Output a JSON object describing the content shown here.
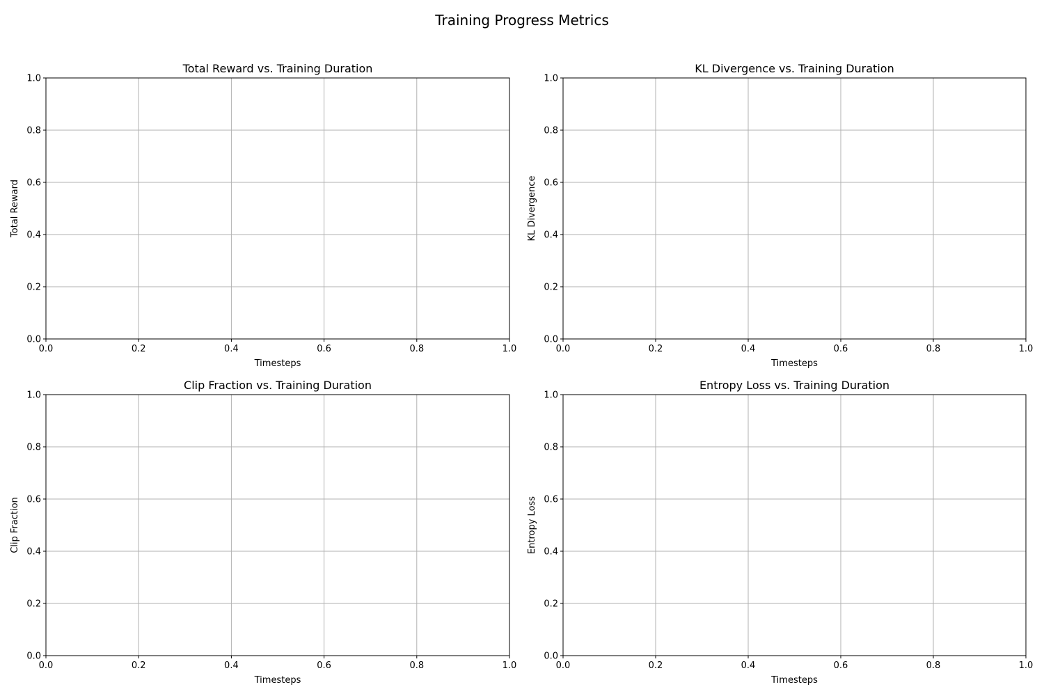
{
  "figure": {
    "suptitle": "Training Progress Metrics",
    "background": "#ffffff",
    "grid_color": "#b0b0b0",
    "axis_color": "#000000"
  },
  "chart_data": [
    {
      "type": "line",
      "title": "Total Reward vs. Training Duration",
      "xlabel": "Timesteps",
      "ylabel": "Total Reward",
      "xlim": [
        0.0,
        1.0
      ],
      "ylim": [
        0.0,
        1.0
      ],
      "xticks": [
        "0.0",
        "0.2",
        "0.4",
        "0.6",
        "0.8",
        "1.0"
      ],
      "yticks": [
        "0.0",
        "0.2",
        "0.4",
        "0.6",
        "0.8",
        "1.0"
      ],
      "grid": true,
      "series": []
    },
    {
      "type": "line",
      "title": "KL Divergence vs. Training Duration",
      "xlabel": "Timesteps",
      "ylabel": "KL Divergence",
      "xlim": [
        0.0,
        1.0
      ],
      "ylim": [
        0.0,
        1.0
      ],
      "xticks": [
        "0.0",
        "0.2",
        "0.4",
        "0.6",
        "0.8",
        "1.0"
      ],
      "yticks": [
        "0.0",
        "0.2",
        "0.4",
        "0.6",
        "0.8",
        "1.0"
      ],
      "grid": true,
      "series": []
    },
    {
      "type": "line",
      "title": "Clip Fraction vs. Training Duration",
      "xlabel": "Timesteps",
      "ylabel": "Clip Fraction",
      "xlim": [
        0.0,
        1.0
      ],
      "ylim": [
        0.0,
        1.0
      ],
      "xticks": [
        "0.0",
        "0.2",
        "0.4",
        "0.6",
        "0.8",
        "1.0"
      ],
      "yticks": [
        "0.0",
        "0.2",
        "0.4",
        "0.6",
        "0.8",
        "1.0"
      ],
      "grid": true,
      "series": []
    },
    {
      "type": "line",
      "title": "Entropy Loss vs. Training Duration",
      "xlabel": "Timesteps",
      "ylabel": "Entropy Loss",
      "xlim": [
        0.0,
        1.0
      ],
      "ylim": [
        0.0,
        1.0
      ],
      "xticks": [
        "0.0",
        "0.2",
        "0.4",
        "0.6",
        "0.8",
        "1.0"
      ],
      "yticks": [
        "0.0",
        "0.2",
        "0.4",
        "0.6",
        "0.8",
        "1.0"
      ],
      "grid": true,
      "series": []
    }
  ]
}
